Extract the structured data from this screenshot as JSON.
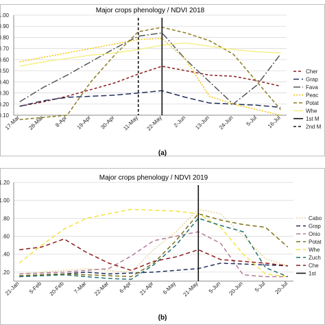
{
  "chart_data": [
    {
      "type": "line",
      "title": "Major crops phenology / NDVI 2018",
      "caption": "(a)",
      "categories": [
        "17-Mar",
        "28-Mar",
        "8-Apr",
        "19-Apr",
        "30-Apr",
        "11-May",
        "22-May",
        "2-Jun",
        "13-Jun",
        "24-Jun",
        "5-Jul",
        "16-Jul"
      ],
      "ytick_labels": [
        "0.10",
        "0.20",
        "0.30",
        "0.40",
        "0.50",
        "0.60",
        "0.70",
        "0.80",
        "0.90",
        "1.00"
      ],
      "ylim": [
        0.1,
        1.0
      ],
      "legend_position": "right",
      "series": [
        {
          "name": "Cher",
          "color": "#8b1a1a",
          "dash": "4,3",
          "values": [
            0.18,
            0.22,
            0.27,
            0.33,
            0.39,
            0.47,
            0.54,
            0.5,
            0.46,
            0.45,
            0.41,
            0.36
          ]
        },
        {
          "name": "Grap",
          "color": "#1f2d5a",
          "dash": "8,4",
          "values": [
            0.18,
            0.23,
            0.26,
            0.27,
            0.28,
            0.3,
            0.32,
            0.26,
            0.21,
            0.2,
            0.19,
            0.17
          ]
        },
        {
          "name": "Fava",
          "color": "#555555",
          "dash": "10,3,2,3",
          "values": [
            0.22,
            0.35,
            0.46,
            0.58,
            0.7,
            0.81,
            0.84,
            0.6,
            0.4,
            0.2,
            0.37,
            0.65
          ]
        },
        {
          "name": "Peac",
          "color": "#f2c200",
          "dash": "2,2",
          "values": [
            0.58,
            0.62,
            0.66,
            0.7,
            0.74,
            0.78,
            0.79,
            0.6,
            0.27,
            0.2,
            0.15,
            0.1
          ]
        },
        {
          "name": "Potat",
          "color": "#8a7a1e",
          "dash": "5,3",
          "values": [
            0.06,
            0.08,
            0.1,
            0.4,
            0.64,
            0.85,
            0.89,
            0.84,
            0.77,
            0.65,
            0.4,
            0.15
          ]
        },
        {
          "name": "Whe",
          "color": "#f5f08a",
          "dash": "",
          "values": [
            0.54,
            0.58,
            0.61,
            0.64,
            0.66,
            0.69,
            0.73,
            0.75,
            0.72,
            0.69,
            0.67,
            0.66
          ]
        }
      ],
      "extra_legend": [
        {
          "name": "1st M",
          "color": "#111111",
          "dash": ""
        },
        {
          "name": "2nd M",
          "color": "#111111",
          "dash": "4,3"
        }
      ],
      "vlines": [
        {
          "name": "2nd M",
          "x": "11-May",
          "dash": "4,3"
        },
        {
          "name": "1st M",
          "x": "22-May",
          "dash": ""
        }
      ]
    },
    {
      "type": "line",
      "title": "Major crops phenology / NDVI 2019",
      "caption": "(b)",
      "categories": [
        "21-Jan",
        "5-Feb",
        "20-Feb",
        "7-Mar",
        "22-Mar",
        "6-Apr",
        "21-Apr",
        "6-May",
        "21-May",
        "5-Jun",
        "20-Jun",
        "5-Jul",
        "20-Jul"
      ],
      "ytick_labels": [
        ".20",
        ".40",
        ".60",
        ".80",
        "1.00",
        "1.20"
      ],
      "ylim": [
        0.1,
        1.2
      ],
      "legend_position": "right",
      "series": [
        {
          "name": "Cabo",
          "color": "#e8d59a",
          "dash": "2,2",
          "values": [
            0.18,
            0.2,
            0.22,
            0.24,
            0.22,
            0.2,
            0.45,
            0.65,
            0.9,
            0.85,
            0.6,
            0.35,
            0.27
          ]
        },
        {
          "name": "Grap",
          "color": "#1f2d5a",
          "dash": "6,4",
          "values": [
            0.15,
            0.17,
            0.18,
            0.2,
            0.18,
            0.19,
            0.2,
            0.22,
            0.24,
            0.3,
            0.29,
            0.28,
            0.27
          ]
        },
        {
          "name": "Onio",
          "color": "#b07a98",
          "dash": "6,4",
          "values": [
            0.18,
            0.19,
            0.2,
            0.22,
            0.24,
            0.38,
            0.55,
            0.6,
            0.65,
            0.52,
            0.17,
            0.15,
            0.15
          ]
        },
        {
          "name": "Potat",
          "color": "#7a6f15",
          "dash": "6,4",
          "values": [
            0.16,
            0.17,
            0.18,
            0.17,
            0.16,
            0.15,
            0.3,
            0.55,
            0.85,
            0.78,
            0.73,
            0.7,
            0.48
          ]
        },
        {
          "name": "Whe",
          "color": "#f5e23a",
          "dash": "6,4",
          "values": [
            0.3,
            0.5,
            0.68,
            0.8,
            0.85,
            0.9,
            0.89,
            0.88,
            0.85,
            0.7,
            0.4,
            0.18,
            0.15
          ]
        },
        {
          "name": "Zuch",
          "color": "#1f6f6f",
          "dash": "6,4",
          "values": [
            0.15,
            0.16,
            0.17,
            0.15,
            0.13,
            0.12,
            0.28,
            0.5,
            0.8,
            0.72,
            0.65,
            0.25,
            0.15
          ]
        },
        {
          "name": "Che",
          "color": "#8b1a1a",
          "dash": "6,4",
          "values": [
            0.45,
            0.48,
            0.57,
            0.42,
            0.3,
            0.22,
            0.32,
            0.37,
            0.45,
            0.34,
            0.32,
            0.3,
            0.27
          ]
        }
      ],
      "extra_legend": [
        {
          "name": "1st",
          "color": "#111111",
          "dash": ""
        }
      ],
      "vlines": [
        {
          "name": "1st",
          "x": "21-May",
          "dash": ""
        }
      ]
    }
  ]
}
